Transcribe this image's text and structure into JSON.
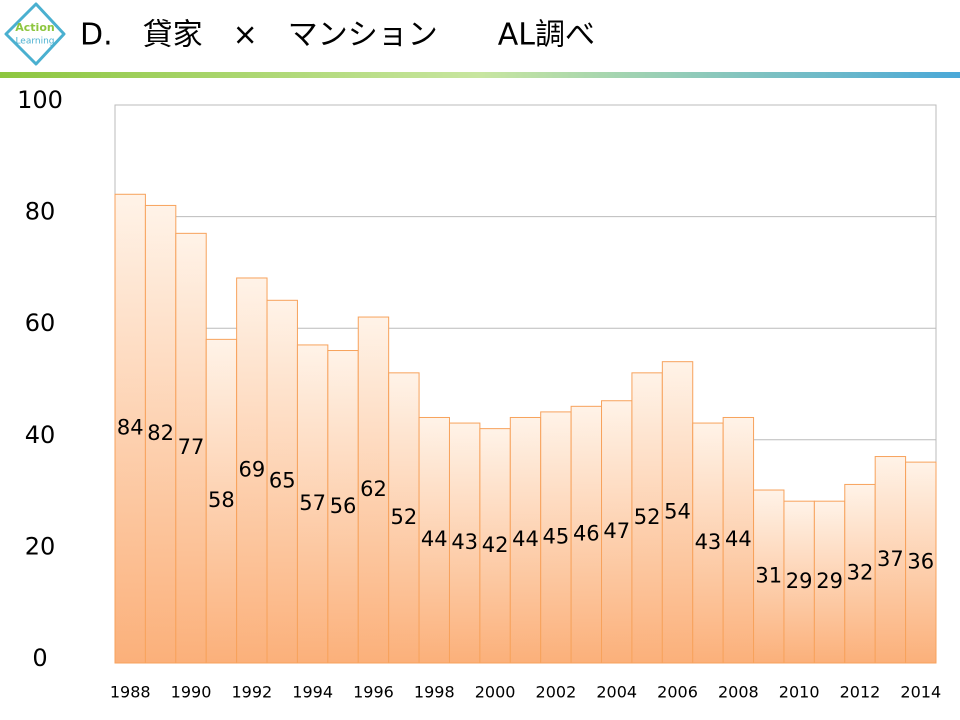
{
  "header": {
    "logo": [
      "Action",
      "Learning"
    ]
  },
  "chart_data": {
    "type": "bar",
    "title": "D.　貸家　×　マンション　　AL調べ",
    "categories": [
      "1988",
      null,
      "1990",
      null,
      "1992",
      null,
      "1994",
      null,
      "1996",
      null,
      "1998",
      null,
      "2000",
      null,
      "2002",
      null,
      "2004",
      null,
      "2006",
      null,
      "2008",
      null,
      "2010",
      null,
      "2012",
      null,
      "2014"
    ],
    "values": [
      84,
      82,
      77,
      58,
      69,
      65,
      57,
      56,
      62,
      52,
      44,
      43,
      42,
      44,
      45,
      46,
      47,
      52,
      54,
      43,
      44,
      31,
      29,
      29,
      32,
      37,
      36
    ],
    "color": "#f7a25c",
    "ylim": [
      0,
      100
    ],
    "yticks": [
      0,
      20,
      40,
      60,
      80,
      100
    ],
    "grid": true
  }
}
